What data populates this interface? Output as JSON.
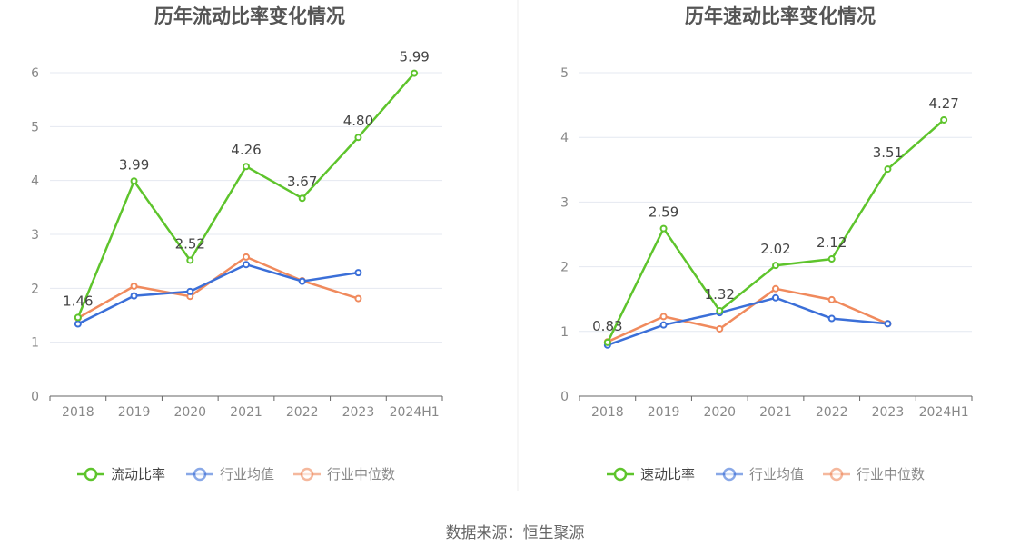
{
  "colors": {
    "primary_series": "#5ec42c",
    "industry_avg": "#3b6fd8",
    "industry_median": "#f08a5d",
    "grid": "#e4e8f1",
    "axis": "#666666",
    "tick_text": "#888888",
    "title_text": "#555555",
    "divider": "#eeeeee"
  },
  "source": "数据来源：恒生聚源",
  "chart_data": [
    {
      "type": "line",
      "title": "历年流动比率变化情况",
      "categories": [
        "2018",
        "2019",
        "2020",
        "2021",
        "2022",
        "2023",
        "2024H1"
      ],
      "ylim": [
        0,
        6
      ],
      "yticks": [
        0,
        1,
        2,
        3,
        4,
        5,
        6
      ],
      "grid": true,
      "legend_position": "bottom-center",
      "series": [
        {
          "name": "流动比率",
          "color": "#5ec42c",
          "values": [
            1.46,
            3.99,
            2.52,
            4.26,
            3.67,
            4.8,
            5.99
          ],
          "labels": [
            "1.46",
            "3.99",
            "2.52",
            "4.26",
            "3.67",
            "4.80",
            "5.99"
          ]
        },
        {
          "name": "行业均值",
          "color": "#3b6fd8",
          "values": [
            1.34,
            1.86,
            1.94,
            2.44,
            2.13,
            2.29,
            null
          ]
        },
        {
          "name": "行业中位数",
          "color": "#f08a5d",
          "values": [
            1.45,
            2.04,
            1.85,
            2.58,
            2.14,
            1.81,
            null
          ]
        }
      ]
    },
    {
      "type": "line",
      "title": "历年速动比率变化情况",
      "categories": [
        "2018",
        "2019",
        "2020",
        "2021",
        "2022",
        "2023",
        "2024H1"
      ],
      "ylim": [
        0,
        5
      ],
      "yticks": [
        0,
        1,
        2,
        3,
        4,
        5
      ],
      "grid": true,
      "legend_position": "bottom-center",
      "series": [
        {
          "name": "速动比率",
          "color": "#5ec42c",
          "values": [
            0.83,
            2.59,
            1.32,
            2.02,
            2.12,
            3.51,
            4.27
          ],
          "labels": [
            "0.83",
            "2.59",
            "1.32",
            "2.02",
            "2.12",
            "3.51",
            "4.27"
          ]
        },
        {
          "name": "行业均值",
          "color": "#3b6fd8",
          "values": [
            0.79,
            1.1,
            1.29,
            1.52,
            1.2,
            1.12,
            null
          ]
        },
        {
          "name": "行业中位数",
          "color": "#f08a5d",
          "values": [
            0.84,
            1.23,
            1.04,
            1.66,
            1.49,
            1.12,
            null
          ]
        }
      ]
    }
  ]
}
